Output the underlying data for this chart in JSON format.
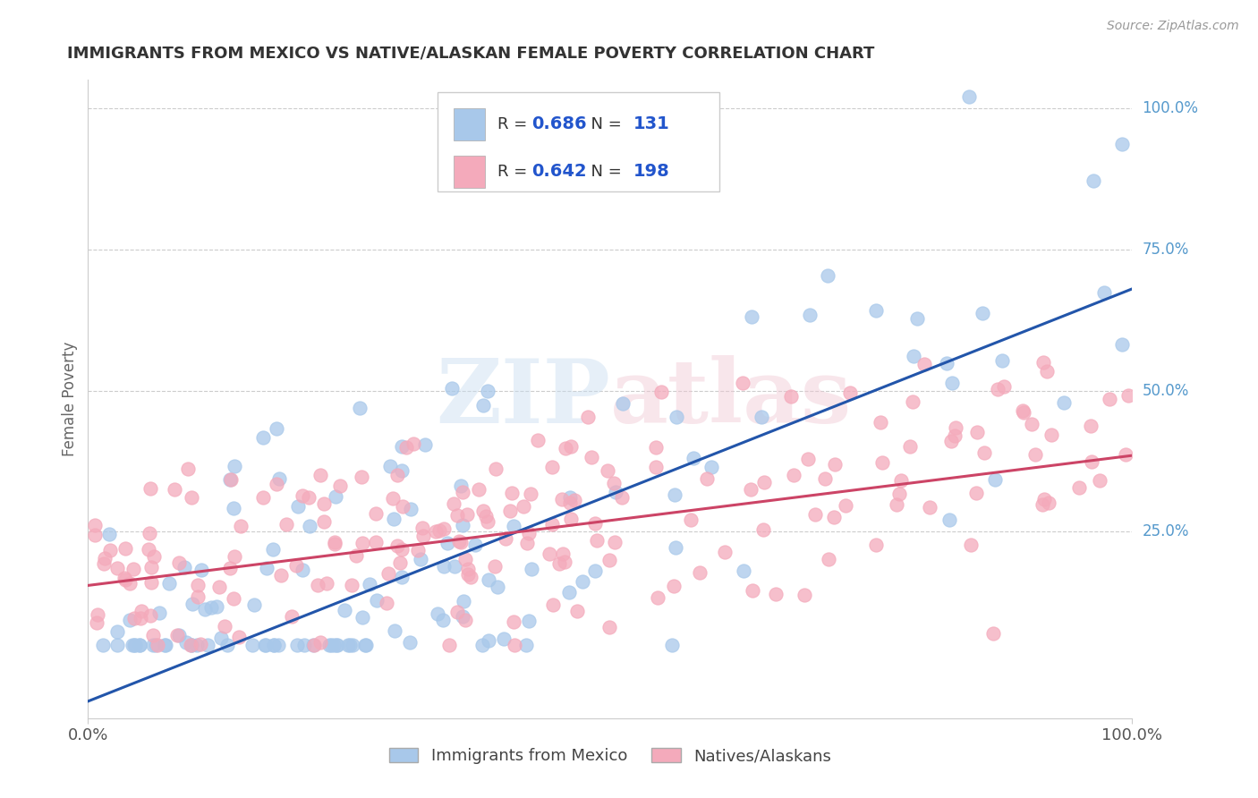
{
  "title": "IMMIGRANTS FROM MEXICO VS NATIVE/ALASKAN FEMALE POVERTY CORRELATION CHART",
  "source": "Source: ZipAtlas.com",
  "ylabel": "Female Poverty",
  "ytick_labels": [
    "100.0%",
    "75.0%",
    "50.0%",
    "25.0%"
  ],
  "ytick_values": [
    1.0,
    0.75,
    0.5,
    0.25
  ],
  "xtick_left": "0.0%",
  "xtick_right": "100.0%",
  "blue_R": 0.686,
  "blue_N": 131,
  "pink_R": 0.642,
  "pink_N": 198,
  "blue_color": "#A8C8EA",
  "pink_color": "#F4AABB",
  "blue_line_color": "#2255AA",
  "pink_line_color": "#CC4466",
  "legend_R_color": "#2255CC",
  "legend_N_color": "#2255CC",
  "watermark_color": "#D8E8F0",
  "watermark_color2": "#F0D8E0",
  "blue_line_x0": 0.0,
  "blue_line_y0": -0.05,
  "blue_line_x1": 1.0,
  "blue_line_y1": 0.68,
  "pink_line_x0": 0.0,
  "pink_line_y0": 0.155,
  "pink_line_x1": 1.0,
  "pink_line_y1": 0.385,
  "xlim": [
    0.0,
    1.0
  ],
  "ylim": [
    -0.08,
    1.05
  ],
  "grid_color": "#CCCCCC",
  "spine_color": "#CCCCCC",
  "title_color": "#333333",
  "source_color": "#999999",
  "ylabel_color": "#666666",
  "tick_label_color": "#555555",
  "ytick_label_color": "#5599CC"
}
